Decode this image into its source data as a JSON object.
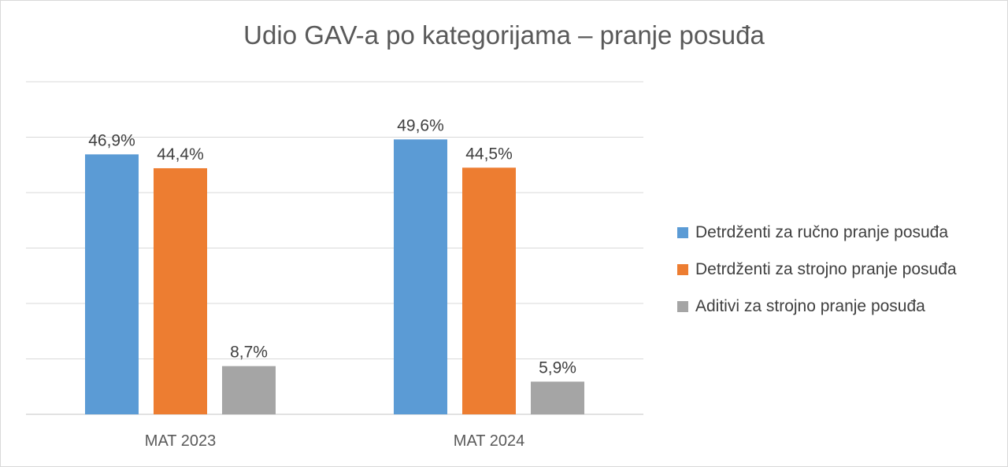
{
  "chart_data": {
    "type": "bar",
    "title": "Udio GAV-a po kategorijama – pranje posuđa",
    "categories": [
      "MAT 2023",
      "MAT 2024"
    ],
    "series": [
      {
        "name": "Detrdženti za ručno pranje posuđa",
        "color": "#5b9bd5",
        "values": [
          46.9,
          49.6
        ],
        "labels": [
          "46,9%",
          "49,6%"
        ]
      },
      {
        "name": "Detrdženti za strojno pranje posuđa",
        "color": "#ed7d31",
        "values": [
          44.4,
          44.5
        ],
        "labels": [
          "44,4%",
          "44,5%"
        ]
      },
      {
        "name": "Aditivi za strojno pranje posuđa",
        "color": "#a5a5a5",
        "values": [
          8.7,
          5.9
        ],
        "labels": [
          "8,7%",
          "5,9%"
        ]
      }
    ],
    "ylim": [
      0,
      60
    ],
    "gridlines": true,
    "legend_position": "right"
  }
}
